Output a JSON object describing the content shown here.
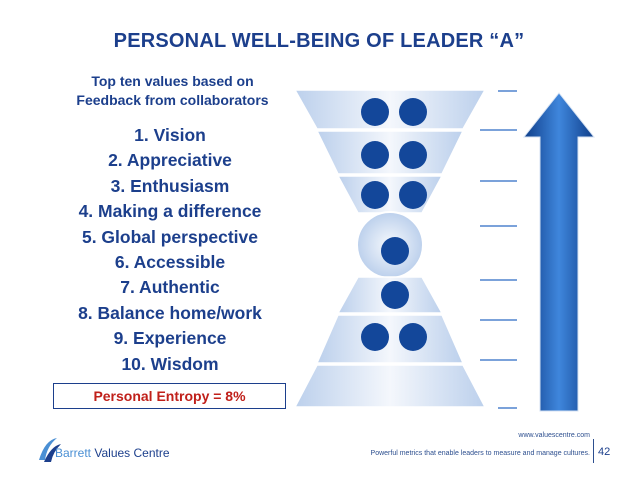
{
  "title": "PERSONAL WELL-BEING OF LEADER “A”",
  "subtitle_line1": "Top ten values based on",
  "subtitle_line2": "Feedback from collaborators",
  "values": [
    "1. Vision",
    "2. Appreciative",
    "3. Enthusiasm",
    "4. Making a difference",
    "5. Global perspective",
    "6. Accessible",
    "7. Authentic",
    "8. Balance home/work",
    "9. Experience",
    "10. Wisdom"
  ],
  "entropy": "Personal Entropy = 8%",
  "footer": {
    "url": "www.valuescentre.com",
    "tagline": "Powerful metrics that enable leaders to measure and manage cultures.",
    "page": "42"
  },
  "logo": {
    "word1": "Barrett",
    "word2": "Values Centre"
  },
  "colors": {
    "title": "#1c3f8c",
    "entropy": "#c0201a",
    "dot": "#13479a",
    "arrow": "#2c6bc4",
    "hourglass_light": "#e9eff9",
    "hourglass_mid": "#bcd0ec"
  },
  "diagram": {
    "level_dots": [
      2,
      2,
      2,
      1,
      1,
      2,
      0
    ]
  }
}
